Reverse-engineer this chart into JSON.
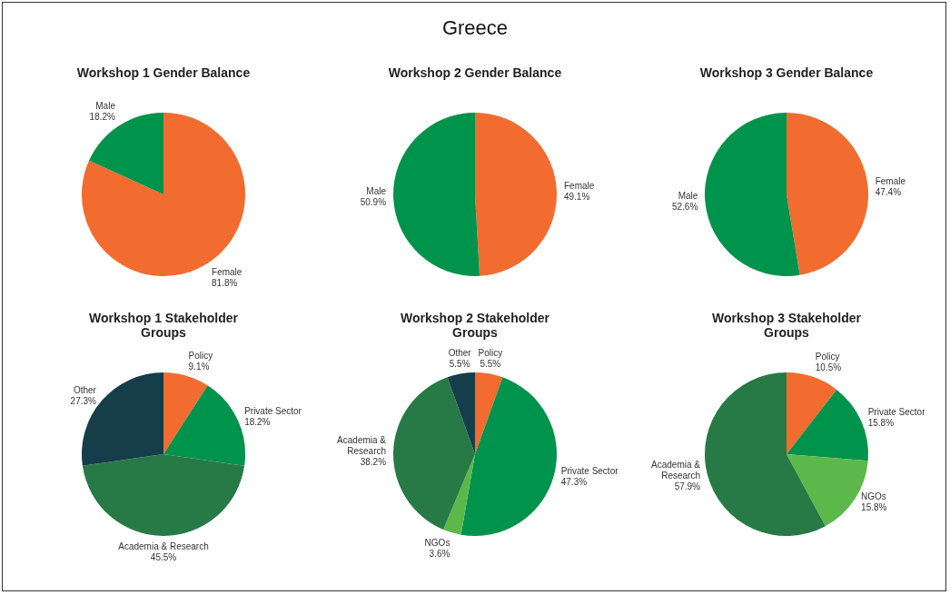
{
  "chart_data": [
    {
      "type": "other",
      "title": "Greece"
    },
    {
      "type": "pie",
      "title": "Workshop 1 Gender Balance",
      "categories": [
        "Female",
        "Male"
      ],
      "values": [
        81.8,
        18.2
      ],
      "value_labels": [
        "81.8%",
        "18.2%"
      ],
      "colors": [
        "#f26b2f",
        "#00934c"
      ]
    },
    {
      "type": "pie",
      "title": "Workshop 2 Gender Balance",
      "categories": [
        "Female",
        "Male"
      ],
      "values": [
        49.1,
        50.9
      ],
      "value_labels": [
        "49.1%",
        "50.9%"
      ],
      "colors": [
        "#f26b2f",
        "#00934c"
      ]
    },
    {
      "type": "pie",
      "title": "Workshop 3 Gender Balance",
      "categories": [
        "Female",
        "Male"
      ],
      "values": [
        47.4,
        52.6
      ],
      "value_labels": [
        "47.4%",
        "52.6%"
      ],
      "colors": [
        "#f26b2f",
        "#00934c"
      ]
    },
    {
      "type": "pie",
      "title": "Workshop 1 Stakeholder Groups",
      "categories": [
        "Policy",
        "Private Sector",
        "Academia & Research",
        "Other"
      ],
      "values": [
        9.1,
        18.2,
        45.5,
        27.3
      ],
      "value_labels": [
        "9.1%",
        "18.2%",
        "45.5%",
        "27.3%"
      ],
      "colors": [
        "#f26b2f",
        "#00934c",
        "#277a45",
        "#153e4a"
      ]
    },
    {
      "type": "pie",
      "title": "Workshop 2 Stakeholder Groups",
      "categories": [
        "Policy",
        "Private Sector",
        "NGOs",
        "Academia & Research",
        "Other"
      ],
      "values": [
        5.5,
        47.3,
        3.6,
        38.2,
        5.5
      ],
      "value_labels": [
        "5.5%",
        "47.3%",
        "3.6%",
        "38.2%",
        "5.5%"
      ],
      "colors": [
        "#f26b2f",
        "#00934c",
        "#5cb84a",
        "#277a45",
        "#153e4a"
      ]
    },
    {
      "type": "pie",
      "title": "Workshop 3 Stakeholder Groups",
      "categories": [
        "Policy",
        "Private Sector",
        "NGOs",
        "Academia & Research"
      ],
      "values": [
        10.5,
        15.8,
        15.8,
        57.9
      ],
      "value_labels": [
        "10.5%",
        "15.8%",
        "15.8%",
        "57.9%"
      ],
      "colors": [
        "#f26b2f",
        "#00934c",
        "#5cb84a",
        "#277a45"
      ]
    }
  ]
}
